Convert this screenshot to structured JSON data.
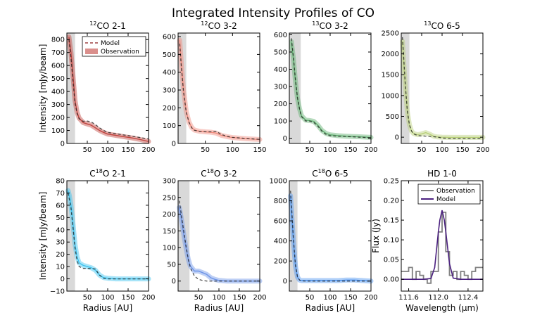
{
  "figure_title": "Integrated Intensity Profiles of CO",
  "chart_data": [
    {
      "type": "line",
      "title": "12CO 2-1",
      "xlabel": "",
      "ylabel": "Intensity [mJy/beam]",
      "xlim": [
        0,
        200
      ],
      "ylim": [
        0,
        850
      ],
      "xticks": [
        "50",
        "100",
        "150",
        "200"
      ],
      "yticks": [
        "0",
        "100",
        "200",
        "300",
        "400",
        "500",
        "600",
        "700",
        "800"
      ],
      "color": "#c1443f",
      "shade": [
        0,
        20
      ],
      "legend": {
        "position": "top-right",
        "entries": [
          "Model",
          "Observation"
        ]
      },
      "series": [
        {
          "name": "Observation",
          "x": [
            5,
            10,
            15,
            20,
            25,
            30,
            40,
            50,
            60,
            70,
            80,
            90,
            100,
            120,
            140,
            160,
            180,
            200
          ],
          "values": [
            820,
            700,
            520,
            330,
            240,
            195,
            160,
            150,
            140,
            120,
            100,
            85,
            72,
            62,
            52,
            42,
            30,
            15
          ]
        },
        {
          "name": "Model",
          "x": [
            5,
            10,
            15,
            20,
            25,
            30,
            40,
            50,
            60,
            70,
            80,
            90,
            100,
            120,
            140,
            160,
            180,
            200
          ],
          "values": [
            800,
            660,
            480,
            310,
            230,
            190,
            170,
            172,
            165,
            145,
            120,
            100,
            85,
            75,
            65,
            55,
            45,
            35
          ]
        }
      ]
    },
    {
      "type": "line",
      "title": "12CO 3-2",
      "xlabel": "",
      "ylabel": "",
      "xlim": [
        0,
        150
      ],
      "ylim": [
        0,
        620
      ],
      "xticks": [
        "50",
        "100",
        "150"
      ],
      "yticks": [
        "0",
        "100",
        "200",
        "300",
        "400",
        "500",
        "600"
      ],
      "color": "#f08a7c",
      "shade": [
        0,
        15
      ],
      "series": [
        {
          "name": "Observation",
          "x": [
            3,
            6,
            10,
            15,
            20,
            25,
            30,
            40,
            50,
            60,
            70,
            80,
            90,
            100,
            125,
            150
          ],
          "values": [
            580,
            450,
            300,
            180,
            120,
            90,
            75,
            68,
            65,
            63,
            58,
            45,
            38,
            33,
            27,
            22
          ]
        },
        {
          "name": "Model",
          "x": [
            3,
            6,
            10,
            15,
            20,
            25,
            30,
            40,
            50,
            60,
            70,
            80,
            90,
            100,
            125,
            150
          ],
          "values": [
            560,
            430,
            290,
            175,
            118,
            88,
            74,
            68,
            66,
            65,
            68,
            50,
            40,
            34,
            28,
            23
          ]
        }
      ]
    },
    {
      "type": "line",
      "title": "13CO 3-2",
      "xlabel": "",
      "ylabel": "",
      "xlim": [
        0,
        200
      ],
      "ylim": [
        -30,
        610
      ],
      "xticks": [
        "50",
        "100",
        "150",
        "200"
      ],
      "yticks": [
        "0",
        "100",
        "200",
        "300",
        "400",
        "500",
        "600"
      ],
      "color": "#5faf6e",
      "shade": [
        0,
        28
      ],
      "series": [
        {
          "name": "Observation",
          "x": [
            5,
            10,
            15,
            20,
            25,
            30,
            40,
            50,
            60,
            70,
            80,
            90,
            100,
            120,
            140,
            160,
            180,
            200
          ],
          "values": [
            560,
            460,
            330,
            230,
            170,
            130,
            105,
            103,
            98,
            75,
            45,
            28,
            20,
            15,
            12,
            10,
            8,
            5
          ]
        },
        {
          "name": "Model",
          "x": [
            5,
            10,
            15,
            20,
            25,
            30,
            40,
            50,
            60,
            70,
            80,
            90,
            100,
            120,
            140,
            160,
            180,
            200
          ],
          "values": [
            580,
            470,
            340,
            235,
            170,
            125,
            100,
            100,
            92,
            70,
            40,
            22,
            15,
            12,
            10,
            8,
            5,
            3
          ]
        }
      ]
    },
    {
      "type": "line",
      "title": "13CO 6-5",
      "xlabel": "",
      "ylabel": "",
      "xlim": [
        0,
        200
      ],
      "ylim": [
        -150,
        2500
      ],
      "xticks": [
        "50",
        "100",
        "150",
        "200"
      ],
      "yticks": [
        "0",
        "500",
        "1000",
        "1500",
        "2000",
        "2500"
      ],
      "color": "#b7cf78",
      "shade": [
        0,
        20
      ],
      "series": [
        {
          "name": "Observation",
          "x": [
            3,
            6,
            10,
            15,
            20,
            25,
            30,
            40,
            50,
            60,
            70,
            80,
            90,
            100,
            120,
            140,
            160,
            180,
            200
          ],
          "values": [
            2300,
            1800,
            1200,
            600,
            300,
            150,
            90,
            60,
            80,
            110,
            70,
            20,
            5,
            0,
            -5,
            -5,
            -5,
            -5,
            -5
          ]
        },
        {
          "name": "Model",
          "x": [
            3,
            6,
            10,
            15,
            20,
            25,
            30,
            40,
            50,
            60,
            70,
            80,
            90,
            100,
            120,
            140,
            160,
            180,
            200
          ],
          "values": [
            2400,
            1900,
            1250,
            620,
            300,
            150,
            80,
            40,
            30,
            25,
            20,
            10,
            0,
            -20,
            -30,
            -30,
            -30,
            -30,
            -30
          ]
        }
      ]
    },
    {
      "type": "line",
      "title": "C18O 2-1",
      "xlabel": "Radius [AU]",
      "ylabel": "Intensity [mJy/beam]",
      "xlim": [
        0,
        200
      ],
      "ylim": [
        -10,
        80
      ],
      "xticks": [
        "50",
        "100",
        "150",
        "200"
      ],
      "yticks": [
        "−10",
        "0",
        "10",
        "20",
        "30",
        "40",
        "50",
        "60",
        "70",
        "80"
      ],
      "color": "#3cc3ef",
      "shade": [
        0,
        20
      ],
      "series": [
        {
          "name": "Observation",
          "x": [
            3,
            6,
            10,
            15,
            20,
            25,
            30,
            40,
            50,
            60,
            70,
            80,
            90,
            100,
            120,
            140,
            160,
            180,
            200
          ],
          "values": [
            72,
            68,
            60,
            45,
            28,
            18,
            13,
            11,
            10,
            9,
            7,
            3,
            1,
            0.5,
            0,
            0,
            0,
            0,
            0
          ]
        },
        {
          "name": "Model",
          "x": [
            3,
            6,
            10,
            15,
            20,
            25,
            30,
            40,
            50,
            60,
            70,
            80,
            90,
            100,
            120,
            140,
            160,
            180,
            200
          ],
          "values": [
            70,
            65,
            58,
            42,
            25,
            15,
            10,
            8.5,
            8.5,
            8.5,
            8,
            3,
            0.5,
            0,
            0,
            0,
            0,
            0,
            0
          ]
        }
      ]
    },
    {
      "type": "line",
      "title": "C18O 3-2",
      "xlabel": "Radius [AU]",
      "ylabel": "",
      "xlim": [
        0,
        200
      ],
      "ylim": [
        -30,
        300
      ],
      "xticks": [
        "50",
        "100",
        "150",
        "200"
      ],
      "yticks": [
        "0",
        "50",
        "100",
        "150",
        "200",
        "250",
        "300"
      ],
      "color": "#6d94e8",
      "shade": [
        0,
        28
      ],
      "series": [
        {
          "name": "Observation",
          "x": [
            3,
            6,
            10,
            15,
            20,
            25,
            30,
            40,
            50,
            60,
            70,
            80,
            90,
            100,
            120,
            140,
            160,
            180,
            200
          ],
          "values": [
            220,
            200,
            170,
            130,
            95,
            65,
            45,
            30,
            30,
            25,
            20,
            10,
            5,
            2,
            0,
            0,
            0,
            0,
            0
          ]
        },
        {
          "name": "Model",
          "x": [
            3,
            6,
            10,
            15,
            20,
            25,
            30,
            40,
            50,
            60,
            70,
            80,
            90,
            100,
            120,
            140,
            160,
            180,
            200
          ],
          "values": [
            240,
            215,
            180,
            140,
            100,
            65,
            40,
            15,
            5,
            2,
            0,
            0,
            0,
            0,
            0,
            0,
            0,
            0,
            0
          ]
        }
      ]
    },
    {
      "type": "line",
      "title": "C18O 6-5",
      "xlabel": "Radius [AU]",
      "ylabel": "",
      "xlim": [
        0,
        200
      ],
      "ylim": [
        -100,
        1000
      ],
      "xticks": [
        "50",
        "100",
        "150",
        "200"
      ],
      "yticks": [
        "0",
        "200",
        "400",
        "600",
        "800",
        "1000"
      ],
      "color": "#4d94f0",
      "shade": [
        0,
        20
      ],
      "series": [
        {
          "name": "Observation",
          "x": [
            3,
            6,
            10,
            15,
            20,
            25,
            30,
            40,
            50,
            60,
            70,
            80,
            90,
            100,
            120,
            140,
            160,
            180,
            200
          ],
          "values": [
            850,
            650,
            400,
            150,
            40,
            10,
            5,
            5,
            5,
            5,
            5,
            5,
            5,
            5,
            5,
            10,
            10,
            5,
            0
          ]
        },
        {
          "name": "Model",
          "x": [
            3,
            6,
            10,
            15,
            20,
            25,
            30,
            40,
            50,
            60,
            70,
            80,
            90,
            100,
            120,
            140,
            160,
            180,
            200
          ],
          "values": [
            900,
            700,
            420,
            160,
            45,
            10,
            2,
            0,
            0,
            0,
            0,
            0,
            0,
            0,
            0,
            0,
            0,
            0,
            0
          ]
        }
      ]
    },
    {
      "type": "line",
      "title": "HD 1-0",
      "xlabel": "Wavelength (μm)",
      "ylabel": "Flux (Jy)",
      "xlim": [
        111.5,
        112.6
      ],
      "ylim": [
        -0.03,
        0.25
      ],
      "xticks": [
        "111.6",
        "112.0",
        "112.4"
      ],
      "yticks": [
        "0.00",
        "0.05",
        "0.10",
        "0.15",
        "0.20",
        "0.25"
      ],
      "legend": {
        "position": "top-right",
        "entries": [
          "Observation",
          "Model"
        ]
      },
      "series": [
        {
          "name": "Observation",
          "color": "#808080",
          "step": true,
          "x": [
            111.5,
            111.55,
            111.6,
            111.65,
            111.7,
            111.75,
            111.8,
            111.85,
            111.9,
            111.95,
            112.0,
            112.05,
            112.1,
            112.15,
            112.2,
            112.25,
            112.3,
            112.35,
            112.4,
            112.45,
            112.5,
            112.55,
            112.6
          ],
          "values": [
            0.02,
            0.02,
            0.03,
            0.0,
            0.02,
            0.01,
            0.0,
            -0.01,
            0.02,
            0.02,
            0.12,
            0.17,
            0.07,
            0.01,
            0.02,
            0.0,
            0.02,
            0.01,
            0.0,
            0.02,
            0.03,
            0.03,
            0.03
          ]
        },
        {
          "name": "Model",
          "color": "#4b2080",
          "x": [
            111.5,
            111.8,
            111.9,
            111.95,
            112.0,
            112.02,
            112.05,
            112.08,
            112.1,
            112.15,
            112.2,
            112.3,
            112.6
          ],
          "values": [
            0,
            0,
            0.002,
            0.03,
            0.12,
            0.15,
            0.175,
            0.15,
            0.12,
            0.04,
            0.003,
            0,
            0
          ]
        }
      ]
    }
  ]
}
